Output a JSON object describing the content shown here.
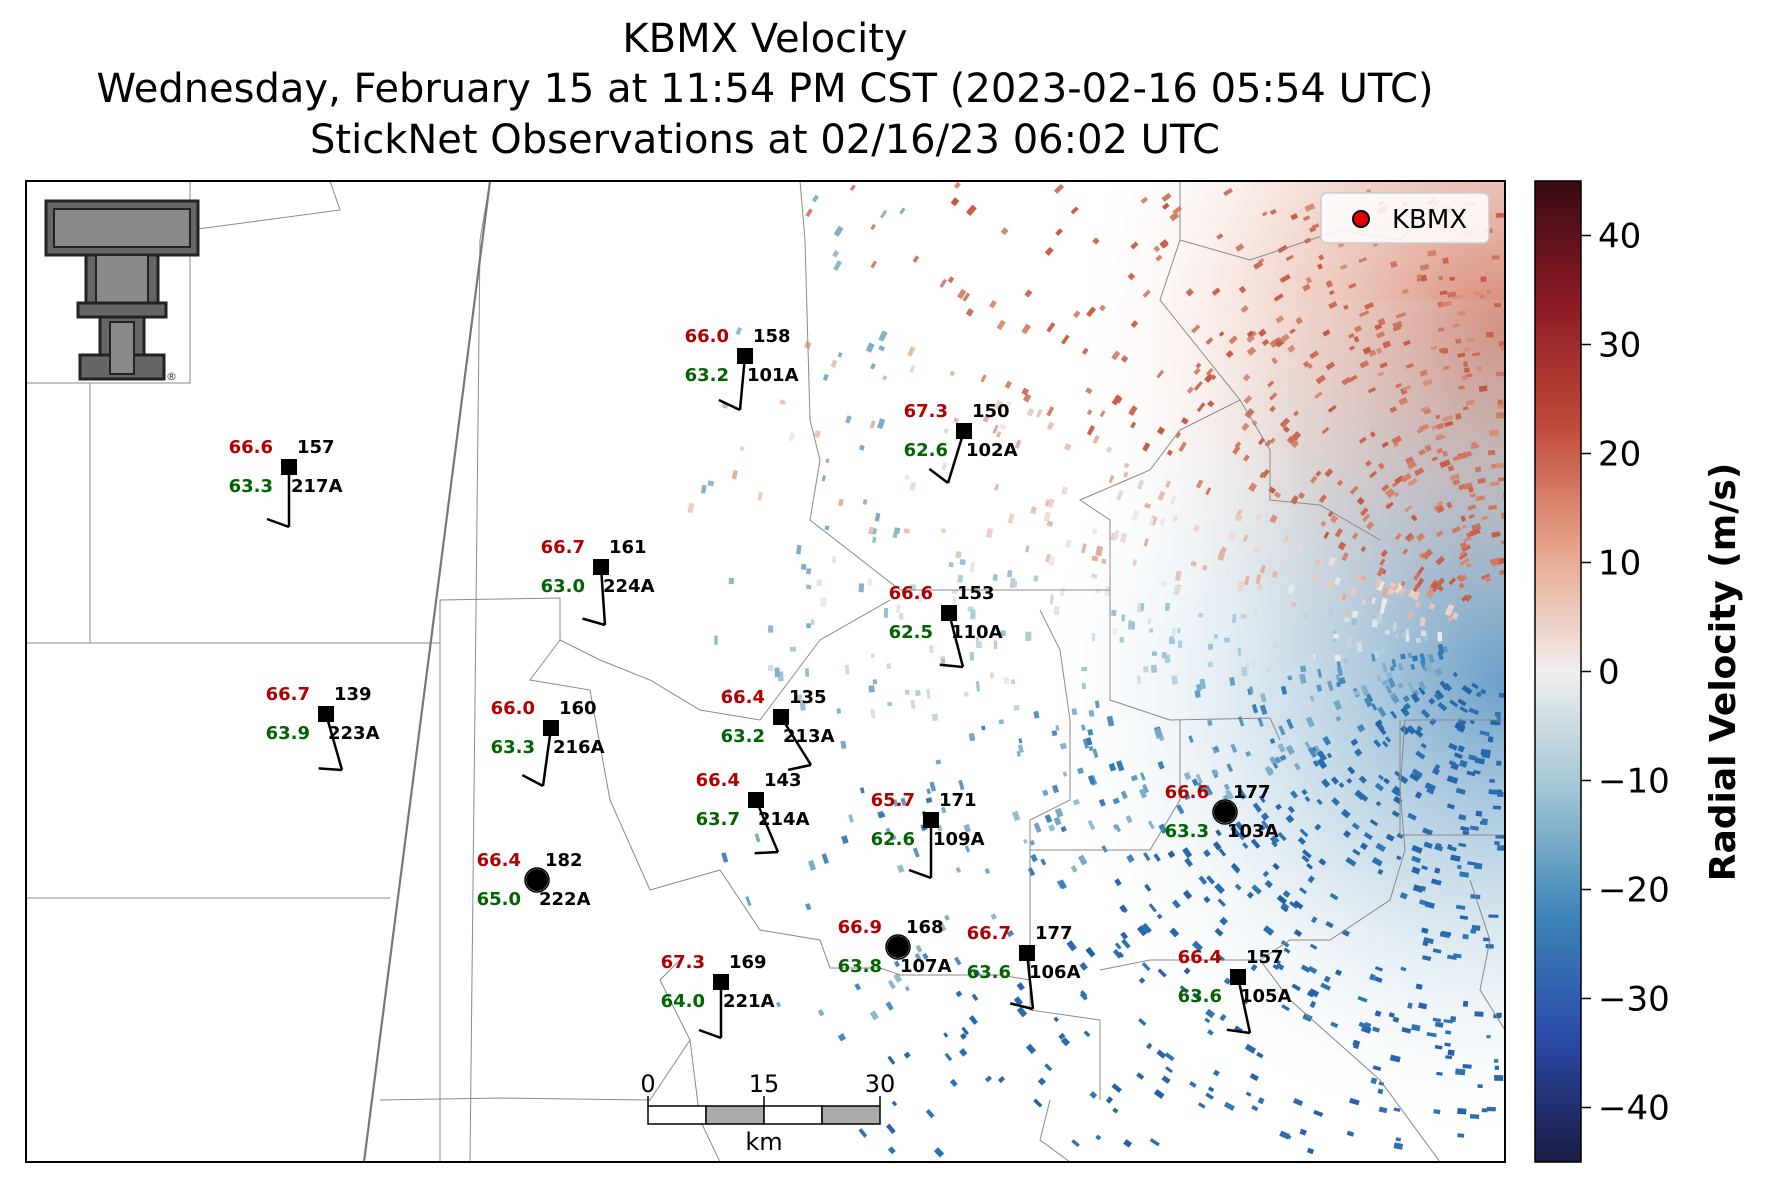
{
  "title": {
    "line1": "KBMX Velocity",
    "line2": "Wednesday, February 15 at 11:54 PM CST (2023-02-16 05:54 UTC)",
    "line3": "StickNet Observations at 02/16/23 06:02 UTC"
  },
  "legend": {
    "label": "KBMX",
    "marker_color": "#e00000"
  },
  "colorbar": {
    "label": "Radial Velocity (m/s)",
    "ticks": [
      "40",
      "30",
      "20",
      "10",
      "0",
      "−10",
      "−20",
      "−30",
      "−40"
    ],
    "colors": [
      "#3a0a12",
      "#8c1a24",
      "#c04a3a",
      "#e8a48a",
      "#f0eeee",
      "#9ec4d4",
      "#3c84b8",
      "#2a4aa8",
      "#1a1a44"
    ]
  },
  "scalebar": {
    "ticks": [
      "0",
      "15",
      "30"
    ],
    "unit": "km"
  },
  "logo": {
    "name": "double-t-logo",
    "mark": "®"
  },
  "stations": [
    {
      "id": "101A",
      "temp": "66.0",
      "dew": "63.2",
      "value": "158",
      "marker": "square"
    },
    {
      "id": "102A",
      "temp": "67.3",
      "dew": "62.6",
      "value": "150",
      "marker": "square"
    },
    {
      "id": "217A",
      "temp": "66.6",
      "dew": "63.3",
      "value": "157",
      "marker": "square"
    },
    {
      "id": "224A",
      "temp": "66.7",
      "dew": "63.0",
      "value": "161",
      "marker": "square"
    },
    {
      "id": "110A",
      "temp": "66.6",
      "dew": "62.5",
      "value": "153",
      "marker": "square"
    },
    {
      "id": "223A",
      "temp": "66.7",
      "dew": "63.9",
      "value": "139",
      "marker": "square"
    },
    {
      "id": "216A",
      "temp": "66.0",
      "dew": "63.3",
      "value": "160",
      "marker": "square"
    },
    {
      "id": "213A",
      "temp": "66.4",
      "dew": "63.2",
      "value": "135",
      "marker": "square"
    },
    {
      "id": "214A",
      "temp": "66.4",
      "dew": "63.7",
      "value": "143",
      "marker": "square"
    },
    {
      "id": "109A",
      "temp": "65.7",
      "dew": "62.6",
      "value": "171",
      "marker": "square"
    },
    {
      "id": "103A",
      "temp": "66.6",
      "dew": "63.3",
      "value": "177",
      "marker": "circle"
    },
    {
      "id": "222A",
      "temp": "66.4",
      "dew": "65.0",
      "value": "182",
      "marker": "circle"
    },
    {
      "id": "107A",
      "temp": "66.9",
      "dew": "63.8",
      "value": "168",
      "marker": "circle"
    },
    {
      "id": "106A",
      "temp": "66.7",
      "dew": "63.6",
      "value": "177",
      "marker": "square"
    },
    {
      "id": "221A",
      "temp": "67.3",
      "dew": "64.0",
      "value": "169",
      "marker": "square"
    },
    {
      "id": "105A",
      "temp": "66.4",
      "dew": "63.6",
      "value": "157",
      "marker": "square"
    }
  ]
}
